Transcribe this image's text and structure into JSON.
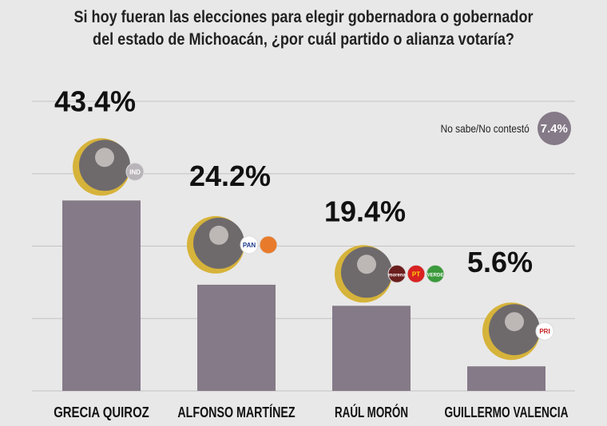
{
  "chart_data": {
    "type": "bar",
    "title": "Si hoy fueran las elecciones para elegir gobernadora o gobernador del estado de Michoacán, ¿por cuál partido o alianza votaría?",
    "title_lines": [
      "Si hoy fueran las elecciones para elegir gobernadora o gobernador",
      "del estado de Michoacán, ¿por cuál partido o alianza votaría?"
    ],
    "categories": [
      "GRECIA QUIROZ",
      "ALFONSO MARTÍNEZ",
      "RAÚL MORÓN",
      "GUILLERMO VALENCIA"
    ],
    "values": [
      43.4,
      24.2,
      19.4,
      5.6
    ],
    "labels": [
      "43.4%",
      "24.2%",
      "19.4%",
      "5.6%"
    ],
    "parties": [
      [
        "IND"
      ],
      [
        "PAN",
        "MC"
      ],
      [
        "morena",
        "PT",
        "VERDE"
      ],
      [
        "PRI"
      ]
    ],
    "ylim": [
      0,
      66
    ],
    "grid": true,
    "bar_color": "#857a88",
    "accent_color": "#d6b33a",
    "no_answer": {
      "label": "No sabe/No contestó",
      "value": "7.4%"
    }
  }
}
